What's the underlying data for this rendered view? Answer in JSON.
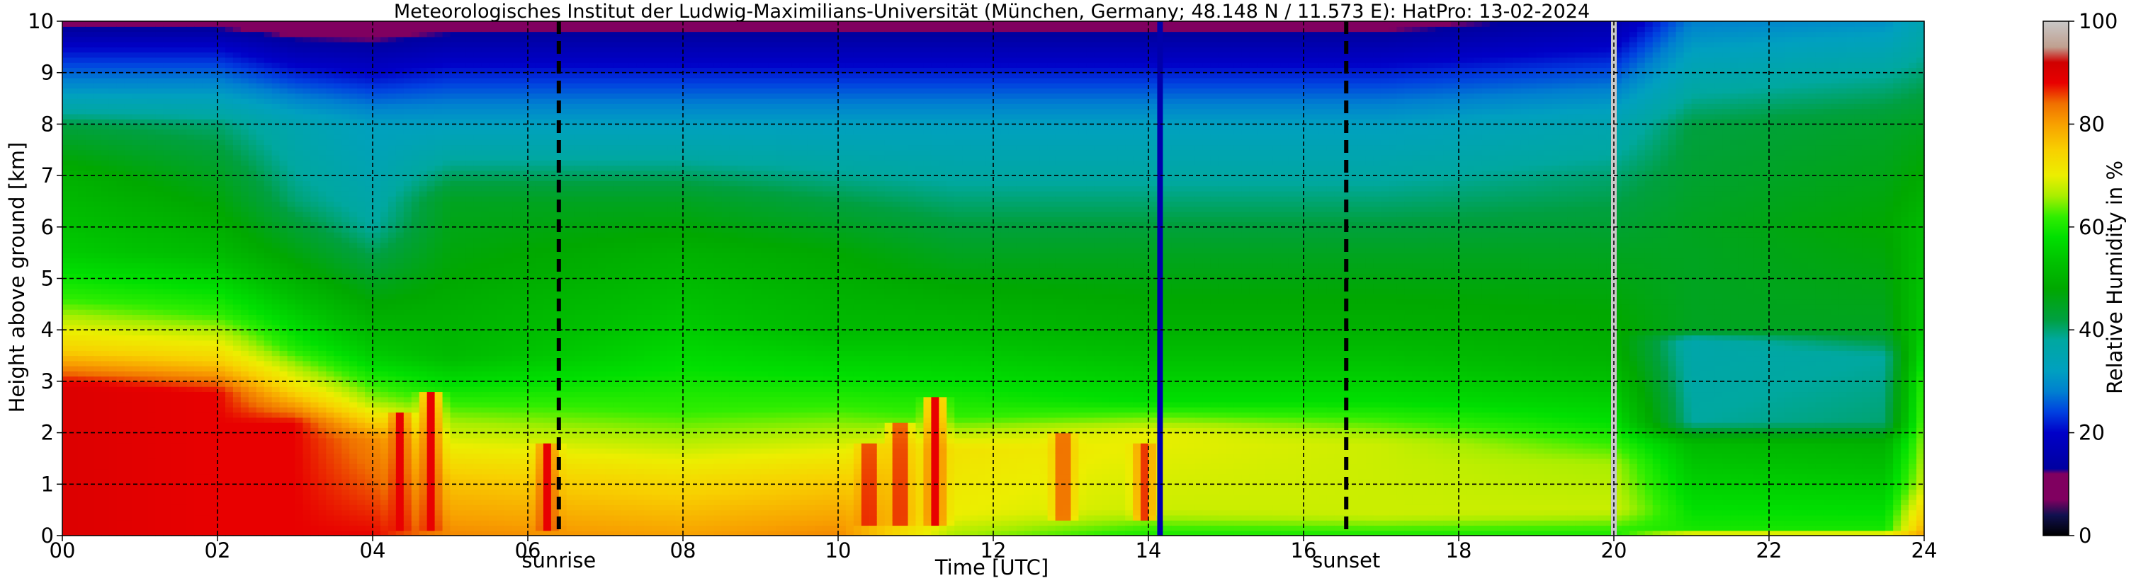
{
  "chart_data": {
    "type": "heatmap",
    "title": "Meteorologisches Institut der Ludwig-Maximilians-Universität (München, Germany; 48.148 N / 11.573 E):    HatPro: 13-02-2024",
    "xlabel": "Time [UTC]",
    "ylabel": "Height above ground [km]",
    "xlim": [
      0,
      24
    ],
    "ylim": [
      0,
      10
    ],
    "x_ticks": [
      "00",
      "02",
      "04",
      "06",
      "08",
      "10",
      "12",
      "14",
      "16",
      "18",
      "20",
      "22",
      "24"
    ],
    "y_ticks": [
      "0",
      "1",
      "2",
      "3",
      "4",
      "5",
      "6",
      "7",
      "8",
      "9",
      "10"
    ],
    "grid": true,
    "colorbar": {
      "label": "Relative Humidity in %",
      "range": [
        0,
        100
      ],
      "ticks": [
        "0",
        "20",
        "40",
        "60",
        "80",
        "100"
      ]
    },
    "markers": [
      {
        "label": "sunrise",
        "x": 6.4
      },
      {
        "label": "sunset",
        "x": 16.55
      }
    ],
    "layers": [
      {
        "time": 0,
        "rh": [
          [
            0,
            90
          ],
          [
            2.9,
            90
          ],
          [
            3.6,
            75
          ],
          [
            4.6,
            62
          ],
          [
            5.5,
            55
          ],
          [
            7,
            50
          ],
          [
            8,
            42
          ],
          [
            8.7,
            30
          ],
          [
            9.5,
            20
          ],
          [
            10,
            10
          ]
        ]
      },
      {
        "time": 2,
        "rh": [
          [
            0,
            88
          ],
          [
            2.8,
            88
          ],
          [
            3.4,
            75
          ],
          [
            4.3,
            62
          ],
          [
            5.5,
            52
          ],
          [
            7,
            45
          ],
          [
            8,
            40
          ],
          [
            8.7,
            30
          ],
          [
            9.5,
            20
          ],
          [
            10,
            10
          ]
        ]
      },
      {
        "time": 3,
        "rh": [
          [
            0,
            88
          ],
          [
            2.2,
            88
          ],
          [
            2.9,
            72
          ],
          [
            3.7,
            60
          ],
          [
            5,
            50
          ],
          [
            6.5,
            40
          ],
          [
            8,
            35
          ],
          [
            9,
            22
          ],
          [
            10,
            8
          ]
        ]
      },
      {
        "time": 4,
        "rh": [
          [
            0,
            88
          ],
          [
            1.9,
            82
          ],
          [
            2.6,
            66
          ],
          [
            3.5,
            55
          ],
          [
            4.5,
            48
          ],
          [
            6,
            38
          ],
          [
            8,
            32
          ],
          [
            9,
            20
          ],
          [
            10,
            8
          ]
        ]
      },
      {
        "time": 5,
        "rh": [
          [
            0,
            82
          ],
          [
            1.1,
            76
          ],
          [
            2.2,
            66
          ],
          [
            3.5,
            52
          ],
          [
            5,
            48
          ],
          [
            6.5,
            45
          ],
          [
            8,
            32
          ],
          [
            9,
            22
          ],
          [
            10,
            10
          ]
        ]
      },
      {
        "time": 8,
        "rh": [
          [
            0,
            80
          ],
          [
            1.1,
            73
          ],
          [
            2.4,
            62
          ],
          [
            4,
            55
          ],
          [
            5.5,
            50
          ],
          [
            6.5,
            45
          ],
          [
            8,
            32
          ],
          [
            9,
            22
          ],
          [
            10,
            10
          ]
        ]
      },
      {
        "time": 10,
        "rh": [
          [
            0,
            82
          ],
          [
            1.1,
            75
          ],
          [
            2.5,
            62
          ],
          [
            4,
            52
          ],
          [
            5.5,
            48
          ],
          [
            6.5,
            42
          ],
          [
            8,
            32
          ],
          [
            9,
            22
          ],
          [
            10,
            10
          ]
        ]
      },
      {
        "time": 11.5,
        "rh": [
          [
            0,
            66
          ],
          [
            0.4,
            70
          ],
          [
            1.7,
            72
          ],
          [
            2.3,
            62
          ],
          [
            4,
            52
          ],
          [
            5.5,
            45
          ],
          [
            6.5,
            40
          ],
          [
            8,
            32
          ],
          [
            9,
            22
          ],
          [
            10,
            10
          ]
        ]
      },
      {
        "time": 14,
        "rh": [
          [
            0,
            60
          ],
          [
            0.5,
            68
          ],
          [
            2,
            70
          ],
          [
            2.6,
            58
          ],
          [
            4,
            50
          ],
          [
            5.5,
            45
          ],
          [
            6.5,
            40
          ],
          [
            8,
            32
          ],
          [
            9,
            22
          ],
          [
            10,
            10
          ]
        ]
      },
      {
        "time": 17,
        "rh": [
          [
            0,
            60
          ],
          [
            0.4,
            68
          ],
          [
            1.8,
            68
          ],
          [
            2.6,
            58
          ],
          [
            4,
            50
          ],
          [
            5.5,
            45
          ],
          [
            6.5,
            40
          ],
          [
            8,
            32
          ],
          [
            9,
            22
          ],
          [
            10,
            10
          ]
        ]
      },
      {
        "time": 20,
        "rh": [
          [
            0,
            60
          ],
          [
            0.5,
            68
          ],
          [
            1.4,
            66
          ],
          [
            2.2,
            58
          ],
          [
            3.5,
            50
          ],
          [
            5.5,
            45
          ],
          [
            7,
            40
          ],
          [
            8,
            35
          ],
          [
            9,
            25
          ],
          [
            10,
            15
          ]
        ]
      },
      {
        "time": 21,
        "rh": [
          [
            0,
            78
          ],
          [
            0.1,
            60
          ],
          [
            1.8,
            52
          ],
          [
            2.2,
            38
          ],
          [
            3.8,
            36
          ],
          [
            4,
            45
          ],
          [
            6,
            45
          ],
          [
            8,
            42
          ],
          [
            9,
            35
          ],
          [
            10,
            28
          ]
        ]
      },
      {
        "time": 23.5,
        "rh": [
          [
            0,
            78
          ],
          [
            0.1,
            60
          ],
          [
            1.8,
            50
          ],
          [
            2.2,
            40
          ],
          [
            3.5,
            38
          ],
          [
            4,
            45
          ],
          [
            6,
            48
          ],
          [
            8,
            44
          ],
          [
            9,
            38
          ],
          [
            10,
            30
          ]
        ]
      },
      {
        "time": 24,
        "rh": [
          [
            0,
            80
          ],
          [
            1,
            68
          ],
          [
            3,
            62
          ],
          [
            4,
            55
          ],
          [
            6,
            52
          ],
          [
            8,
            45
          ],
          [
            9,
            40
          ],
          [
            10,
            35
          ]
        ]
      }
    ],
    "blobs": [
      {
        "t": 4.35,
        "h0": 0.1,
        "h1": 2.4,
        "rh": 88
      },
      {
        "t": 4.75,
        "h0": 0.1,
        "h1": 2.8,
        "rh": 88
      },
      {
        "t": 6.25,
        "h0": 0.1,
        "h1": 1.8,
        "rh": 88
      },
      {
        "t": 10.4,
        "h0": 0.2,
        "h1": 1.8,
        "rh": 88
      },
      {
        "t": 10.8,
        "h0": 0.2,
        "h1": 2.2,
        "rh": 88
      },
      {
        "t": 11.25,
        "h0": 0.2,
        "h1": 2.7,
        "rh": 88
      },
      {
        "t": 12.9,
        "h0": 0.3,
        "h1": 2.0,
        "rh": 86
      },
      {
        "t": 13.95,
        "h0": 0.3,
        "h1": 1.8,
        "rh": 86
      }
    ],
    "gaps": [
      {
        "t": 14.15,
        "rh": 15
      },
      {
        "t": 20.0,
        "rh": 100
      }
    ]
  }
}
